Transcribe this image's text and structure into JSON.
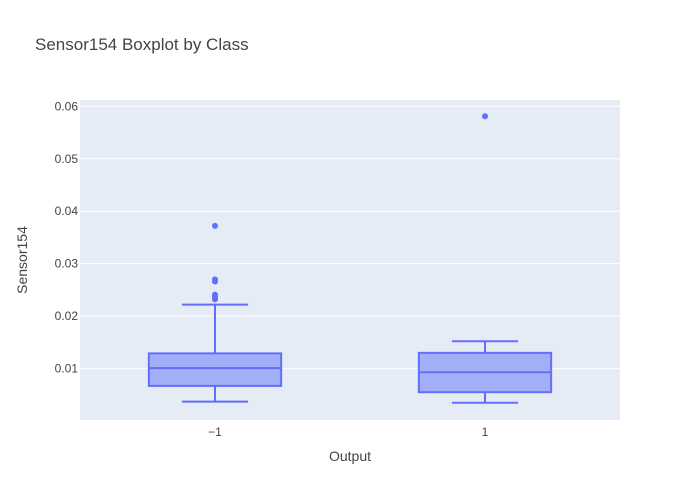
{
  "chart_data": {
    "type": "box",
    "title": "Sensor154 Boxplot by Class",
    "xlabel": "Output",
    "ylabel": "Sensor154",
    "categories": [
      "−1",
      "1"
    ],
    "ylim": [
      0.0002,
      0.0612
    ],
    "yticks": [
      0.01,
      0.02,
      0.03,
      0.04,
      0.05,
      0.06
    ],
    "ytick_labels": [
      "0.01",
      "0.02",
      "0.03",
      "0.04",
      "0.05",
      "0.06"
    ],
    "grid": true,
    "plot_background": "#E5ECF6",
    "box_fill": "#A3AEF8",
    "box_line": "#636EFA",
    "boxes": [
      {
        "category": "−1",
        "lower_fence": 0.0037,
        "q1": 0.0067,
        "median": 0.0101,
        "q3": 0.0129,
        "upper_fence": 0.0222,
        "outliers": [
          0.0232,
          0.0235,
          0.0238,
          0.0241,
          0.0266,
          0.027,
          0.0372
        ]
      },
      {
        "category": "1",
        "lower_fence": 0.0035,
        "q1": 0.0055,
        "median": 0.0093,
        "q3": 0.013,
        "upper_fence": 0.0152,
        "outliers": [
          0.0581
        ]
      }
    ]
  }
}
